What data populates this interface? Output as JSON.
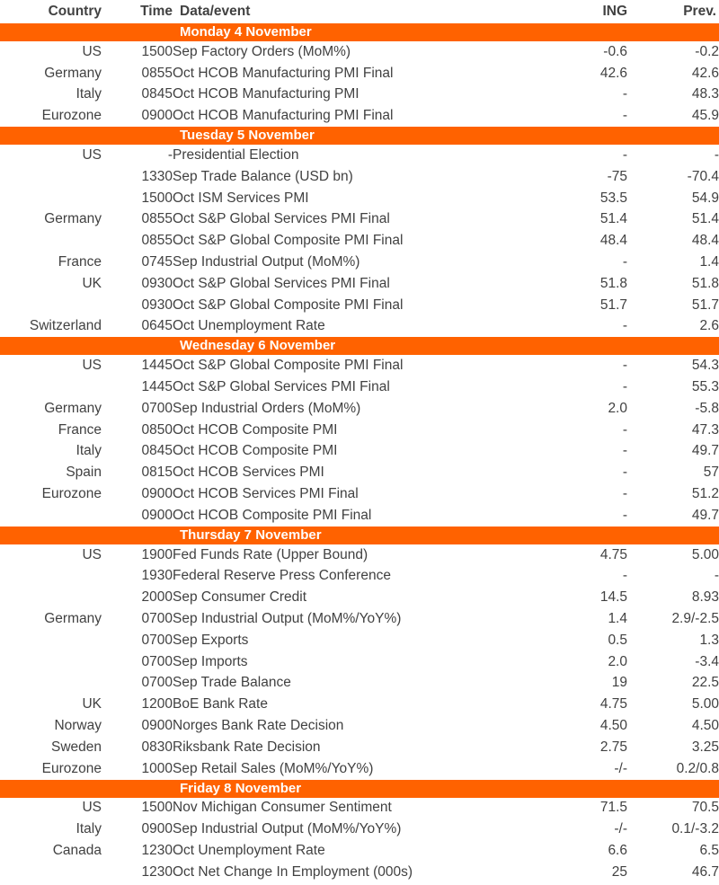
{
  "colors": {
    "banner_bg": "#FF6200",
    "banner_text": "#FFFFFF",
    "body_text": "#414141",
    "background": "#FFFFFF"
  },
  "chart_data": {
    "type": "table",
    "columns": [
      "Country",
      "Time",
      "Data/event",
      "ING",
      "Prev."
    ],
    "sections": [
      {
        "title": "Monday 4 November",
        "rows": [
          [
            "US",
            "1500",
            "Sep Factory Orders (MoM%)",
            "-0.6",
            "-0.2"
          ],
          [
            "Germany",
            "0855",
            "Oct HCOB Manufacturing PMI Final",
            "42.6",
            "42.6"
          ],
          [
            "Italy",
            "0845",
            "Oct HCOB Manufacturing PMI",
            "-",
            "48.3"
          ],
          [
            "Eurozone",
            "0900",
            "Oct HCOB Manufacturing PMI Final",
            "-",
            "45.9"
          ]
        ]
      },
      {
        "title": "Tuesday 5 November",
        "rows": [
          [
            "US",
            "-",
            "Presidential Election",
            "-",
            "-"
          ],
          [
            "",
            "1330",
            "Sep Trade Balance (USD bn)",
            "-75",
            "-70.4"
          ],
          [
            "",
            "1500",
            "Oct ISM Services PMI",
            "53.5",
            "54.9"
          ],
          [
            "Germany",
            "0855",
            "Oct S&P Global Services PMI Final",
            "51.4",
            "51.4"
          ],
          [
            "",
            "0855",
            "Oct S&P Global Composite PMI Final",
            "48.4",
            "48.4"
          ],
          [
            "France",
            "0745",
            "Sep Industrial Output (MoM%)",
            "-",
            "1.4"
          ],
          [
            "UK",
            "0930",
            "Oct S&P Global Services PMI Final",
            "51.8",
            "51.8"
          ],
          [
            "",
            "0930",
            "Oct S&P Global Composite PMI Final",
            "51.7",
            "51.7"
          ],
          [
            "Switzerland",
            "0645",
            "Oct Unemployment Rate",
            "-",
            "2.6"
          ]
        ]
      },
      {
        "title": "Wednesday 6 November",
        "rows": [
          [
            "US",
            "1445",
            "Oct S&P Global Composite PMI Final",
            "-",
            "54.3"
          ],
          [
            "",
            "1445",
            "Oct S&P Global Services PMI Final",
            "-",
            "55.3"
          ],
          [
            "Germany",
            "0700",
            "Sep Industrial Orders (MoM%)",
            "2.0",
            "-5.8"
          ],
          [
            "France",
            "0850",
            "Oct HCOB Composite PMI",
            "-",
            "47.3"
          ],
          [
            "Italy",
            "0845",
            "Oct HCOB Composite PMI",
            "-",
            "49.7"
          ],
          [
            "Spain",
            "0815",
            "Oct HCOB Services PMI",
            "-",
            "57"
          ],
          [
            "Eurozone",
            "0900",
            "Oct HCOB Services PMI Final",
            "-",
            "51.2"
          ],
          [
            "",
            "0900",
            "Oct HCOB Composite PMI Final",
            "-",
            "49.7"
          ]
        ]
      },
      {
        "title": "Thursday 7 November",
        "rows": [
          [
            "US",
            "1900",
            "Fed Funds Rate (Upper Bound)",
            "4.75",
            "5.00"
          ],
          [
            "",
            "1930",
            "Federal Reserve Press Conference",
            "-",
            "-"
          ],
          [
            "",
            "2000",
            "Sep Consumer Credit",
            "14.5",
            "8.93"
          ],
          [
            "Germany",
            "0700",
            "Sep Industrial Output (MoM%/YoY%)",
            "1.4",
            "2.9/-2.5"
          ],
          [
            "",
            "0700",
            "Sep Exports",
            "0.5",
            "1.3"
          ],
          [
            "",
            "0700",
            "Sep Imports",
            "2.0",
            "-3.4"
          ],
          [
            "",
            "0700",
            "Sep Trade Balance",
            "19",
            "22.5"
          ],
          [
            "UK",
            "1200",
            "BoE Bank Rate",
            "4.75",
            "5.00"
          ],
          [
            "Norway",
            "0900",
            "Norges Bank Rate Decision",
            "4.50",
            "4.50"
          ],
          [
            "Sweden",
            "0830",
            "Riksbank Rate Decision",
            "2.75",
            "3.25"
          ],
          [
            "Eurozone",
            "1000",
            "Sep Retail Sales (MoM%/YoY%)",
            "-/-",
            "0.2/0.8"
          ]
        ]
      },
      {
        "title": "Friday 8 November",
        "rows": [
          [
            "US",
            "1500",
            "Nov Michigan Consumer Sentiment",
            "71.5",
            "70.5"
          ],
          [
            "Italy",
            "0900",
            "Sep Industrial Output (MoM%/YoY%)",
            "-/-",
            "0.1/-3.2"
          ],
          [
            "Canada",
            "1230",
            "Oct Unemployment Rate",
            "6.6",
            "6.5"
          ],
          [
            "",
            "1230",
            "Oct Net Change In Employment (000s)",
            "25",
            "46.7"
          ]
        ]
      }
    ]
  }
}
